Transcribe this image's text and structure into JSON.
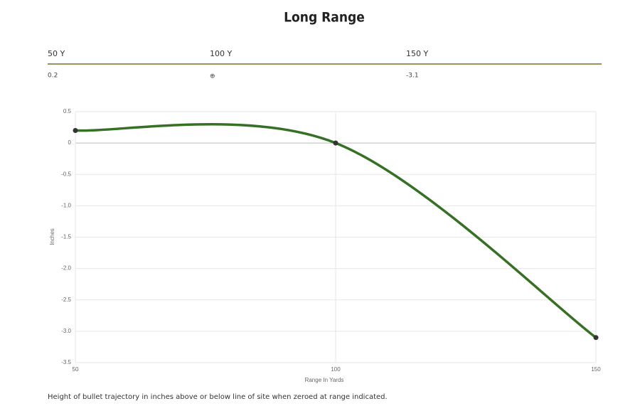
{
  "title": "Long Range",
  "table": {
    "headers": [
      "50 Y",
      "100 Y",
      "150 Y"
    ],
    "rows": [
      [
        "0.2",
        "⊕",
        "-3.1"
      ]
    ]
  },
  "chart_data": {
    "type": "line",
    "x": [
      50,
      100,
      150
    ],
    "values": [
      0.2,
      0,
      -3.1
    ],
    "color": "#357024",
    "xlim": [
      50,
      150
    ],
    "xticks": [
      50,
      100,
      150
    ],
    "ylim": [
      -3.5,
      0.5
    ],
    "yticks": [
      0.5,
      0,
      -0.5,
      {
        "value": -1,
        "label": "-1.0"
      },
      -1.5,
      {
        "value": -2,
        "label": "-2.0"
      },
      -2.5,
      {
        "value": -3,
        "label": "-3.0"
      },
      -3.5
    ],
    "x_label": "Range In Yards",
    "y_label": "Inches",
    "grid": true
  },
  "footnote": "Height of bullet trajectory in inches above or below line of site when zeroed at range indicated."
}
